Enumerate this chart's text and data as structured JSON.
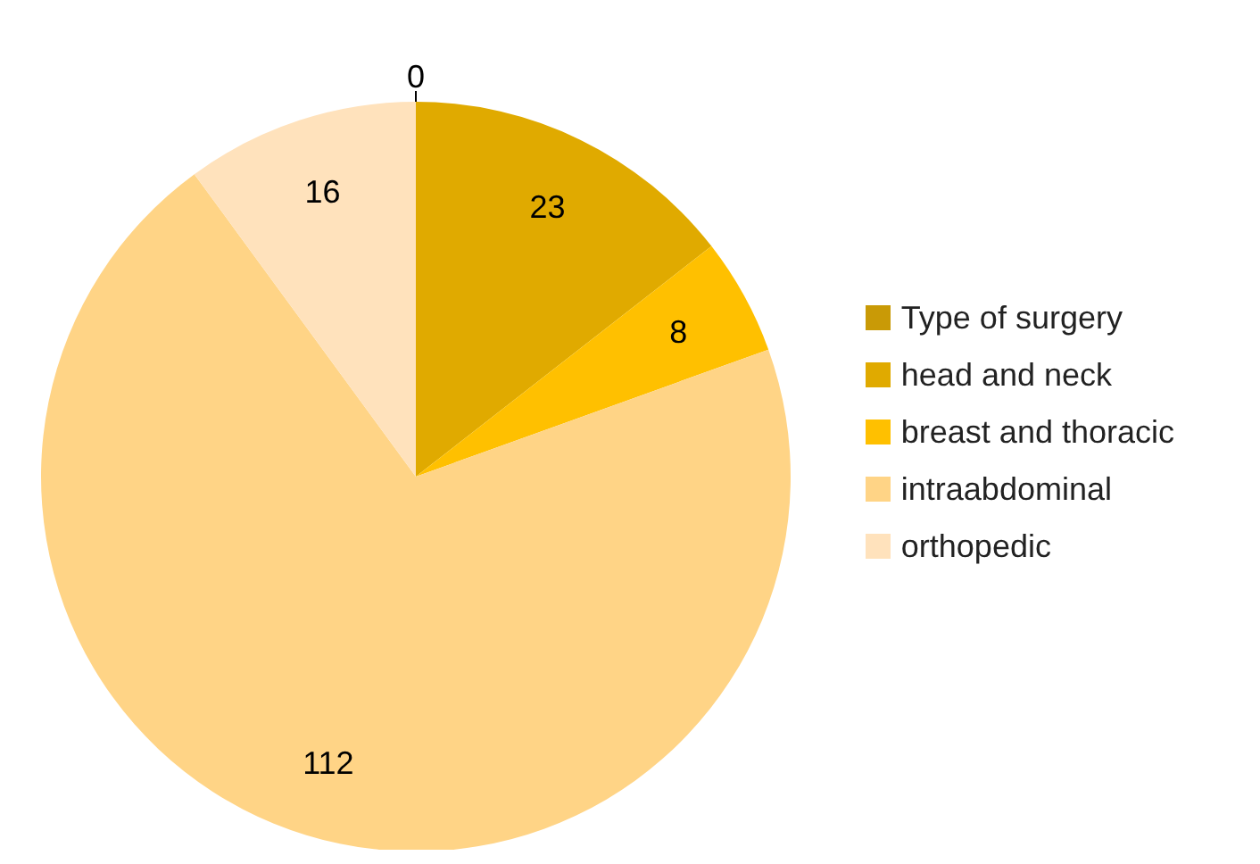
{
  "chart_data": {
    "type": "pie",
    "categories": [
      "Type of surgery",
      "head and neck",
      "breast and thoracic",
      "intraabdominal",
      "orthopedic"
    ],
    "values": [
      0,
      23,
      8,
      112,
      16
    ],
    "colors": [
      "#c99a06",
      "#e0aa00",
      "#ffc000",
      "#ffd486",
      "#ffe2bc"
    ],
    "value_labels": [
      "0",
      "23",
      "8",
      "112",
      "16"
    ],
    "legend": "right"
  }
}
